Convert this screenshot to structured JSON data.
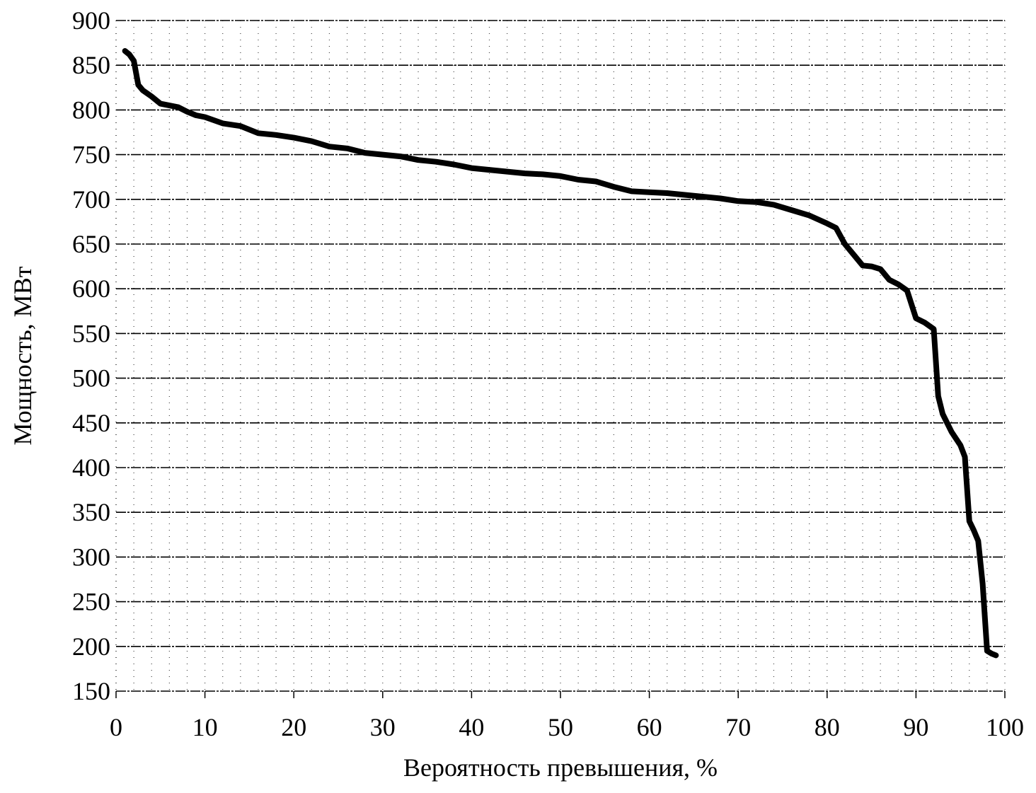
{
  "chart_data": {
    "type": "line",
    "title": "",
    "xlabel": "Вероятность превышения, %",
    "ylabel": "Мощность, МВт",
    "xlim": [
      0,
      100
    ],
    "ylim": [
      150,
      900
    ],
    "x_ticks": [
      0,
      10,
      20,
      30,
      40,
      50,
      60,
      70,
      80,
      90,
      100
    ],
    "y_ticks": [
      150,
      200,
      250,
      300,
      350,
      400,
      450,
      500,
      550,
      600,
      650,
      700,
      750,
      800,
      850,
      900
    ],
    "grid": true,
    "legend": null,
    "series": [
      {
        "name": "Мощность",
        "color": "#000000",
        "x": [
          1,
          1.5,
          2,
          2.5,
          3,
          4,
          5,
          6,
          7,
          8,
          9,
          10,
          12,
          14,
          16,
          18,
          20,
          22,
          24,
          26,
          28,
          30,
          32,
          34,
          36,
          38,
          40,
          42,
          44,
          46,
          48,
          50,
          52,
          54,
          56,
          58,
          60,
          62,
          64,
          66,
          68,
          70,
          72,
          74,
          76,
          78,
          80,
          81,
          82,
          83,
          84,
          85,
          86,
          87,
          88,
          89,
          90,
          91,
          92,
          92.5,
          93,
          94,
          95,
          95.5,
          96,
          96.5,
          97,
          97.5,
          98,
          98.5,
          99
        ],
        "y": [
          866,
          862,
          855,
          828,
          822,
          815,
          807,
          805,
          803,
          798,
          794,
          792,
          785,
          782,
          774,
          772,
          769,
          765,
          759,
          757,
          752,
          750,
          748,
          744,
          742,
          739,
          735,
          733,
          731,
          729,
          728,
          726,
          722,
          720,
          714,
          709,
          708,
          707,
          705,
          703,
          701,
          698,
          697,
          694,
          688,
          682,
          673,
          668,
          650,
          638,
          626,
          625,
          622,
          610,
          605,
          598,
          567,
          562,
          555,
          480,
          460,
          440,
          425,
          412,
          340,
          330,
          318,
          270,
          195,
          192,
          190
        ]
      }
    ]
  },
  "axes": {
    "x_title": "Вероятность превышения, %",
    "y_title": "Мощность, МВт"
  }
}
